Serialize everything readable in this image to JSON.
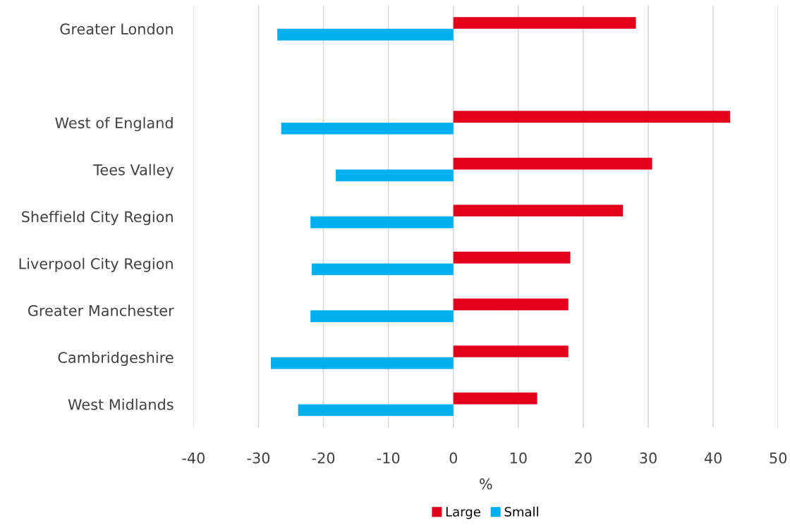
{
  "chart_data": {
    "type": "bar",
    "orientation": "horizontal",
    "xlabel": "%",
    "categories": [
      "Greater London",
      null,
      "West of England",
      "Tees Valley",
      "Sheffield City Region",
      "Liverpool City Region",
      "Greater Manchester",
      "Cambridgeshire",
      "West Midlands"
    ],
    "series": [
      {
        "name": "Large",
        "color": "#e2001a",
        "values": [
          28.1,
          null,
          42.6,
          30.6,
          26.1,
          18.0,
          17.7,
          17.7,
          12.9
        ]
      },
      {
        "name": "Small",
        "color": "#00b0f0",
        "values": [
          -27.1,
          null,
          -26.5,
          -18.1,
          -22.0,
          -21.8,
          -22.0,
          -28.1,
          -23.9
        ]
      }
    ],
    "xlim": [
      -40,
      50
    ],
    "xticks": [
      -40,
      -30,
      -20,
      -10,
      0,
      10,
      20,
      30,
      40,
      50
    ],
    "grid": "x",
    "legend": "bottom"
  }
}
